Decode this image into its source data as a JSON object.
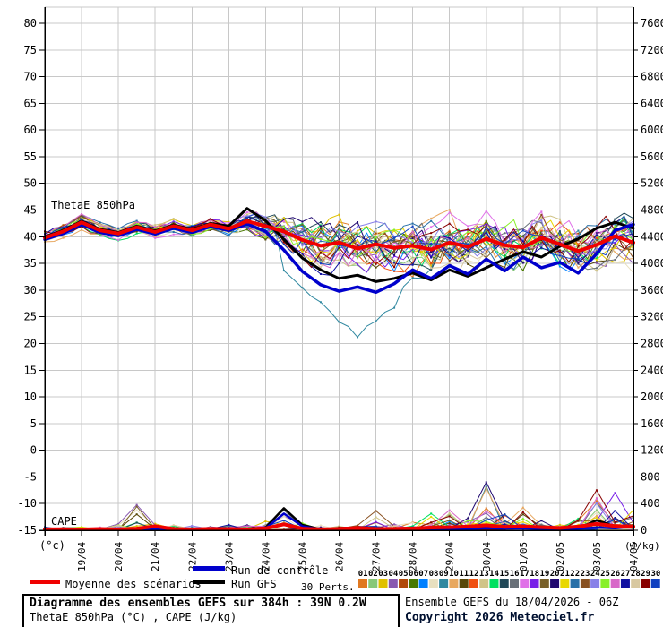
{
  "chart": {
    "thetae_label": "ThetaE 850hPa",
    "cape_label": "CAPE",
    "left_axis_unit": "(°c)",
    "right_axis_unit": "(J/kg)"
  },
  "chart_data": {
    "type": "line",
    "title": "Diagramme des ensembles GEFS sur 384h : 39N 0.2W",
    "subtitle": "ThetaE 850hPa (°C) , CAPE (J/kg)",
    "x_step_hours": 12,
    "x_total_days": 16,
    "x_dates": [
      "19/04",
      "20/04",
      "21/04",
      "22/04",
      "23/04",
      "24/04",
      "25/04",
      "26/04",
      "27/04",
      "28/04",
      "29/04",
      "30/04",
      "01/05",
      "02/05",
      "03/05",
      "04/05"
    ],
    "left_axis": {
      "min": -15,
      "max": 80,
      "step": 5,
      "label": "(°c)"
    },
    "right_axis": {
      "min": 0,
      "max": 7600,
      "step": 400,
      "label": "(J/kg)"
    },
    "grid": true,
    "series": [
      {
        "name": "Moyenne des scénarios",
        "color": "#f00000",
        "values": [
          39.8,
          41.0,
          42.7,
          41.2,
          40.6,
          41.8,
          40.9,
          42.0,
          41.2,
          42.3,
          41.5,
          42.9,
          42.0,
          41.0,
          39.4,
          38.3,
          38.9,
          37.8,
          38.6,
          37.9,
          38.3,
          37.6,
          38.9,
          38.1,
          39.6,
          38.4,
          38.0,
          39.8,
          38.6,
          37.3,
          38.5,
          40.1,
          38.9
        ]
      },
      {
        "name": "Run de contrôle",
        "color": "#0000cc",
        "values": [
          39.5,
          40.6,
          42.3,
          40.8,
          40.2,
          41.4,
          40.5,
          41.6,
          40.8,
          41.9,
          41.2,
          42.4,
          41.0,
          37.5,
          33.5,
          31.0,
          29.8,
          30.6,
          29.6,
          31.2,
          33.8,
          32.2,
          34.6,
          33.0,
          35.8,
          33.6,
          36.2,
          34.2,
          35.2,
          33.2,
          36.8,
          41.2,
          42.3
        ]
      },
      {
        "name": "Run GFS",
        "color": "#000000",
        "values": [
          40.0,
          41.2,
          42.9,
          41.4,
          40.8,
          42.0,
          41.1,
          42.2,
          41.4,
          42.5,
          42.0,
          45.3,
          43.0,
          39.5,
          36.0,
          33.8,
          32.2,
          32.8,
          31.6,
          32.2,
          33.2,
          31.9,
          33.8,
          32.6,
          34.2,
          35.8,
          37.2,
          36.2,
          38.2,
          39.6,
          41.6,
          42.7,
          41.6
        ]
      }
    ],
    "ensemble_envelope": {
      "min": [
        38.3,
        39.2,
        40.8,
        39.4,
        38.8,
        39.8,
        38.9,
        40.0,
        39.2,
        40.2,
        38.8,
        39.5,
        37.5,
        33.0,
        29.5,
        27.0,
        23.5,
        20.5,
        24.0,
        26.0,
        27.0,
        27.0,
        27.8,
        27.3,
        28.0,
        27.0,
        27.8,
        27.2,
        28.0,
        27.4,
        28.0,
        29.0,
        28.4
      ],
      "max": [
        41.6,
        42.8,
        44.6,
        43.0,
        42.4,
        43.6,
        42.8,
        43.9,
        43.2,
        44.3,
        45.8,
        47.6,
        46.4,
        45.2,
        45.0,
        44.2,
        45.6,
        44.1,
        45.2,
        46.1,
        46.6,
        45.2,
        47.1,
        46.2,
        47.6,
        46.2,
        48.1,
        46.6,
        50.1,
        48.2,
        51.6,
        50.2,
        47.2
      ]
    },
    "cape": {
      "mean": [
        15,
        18,
        14,
        20,
        15,
        25,
        60,
        20,
        15,
        22,
        20,
        15,
        30,
        90,
        25,
        15,
        20,
        35,
        20,
        22,
        28,
        40,
        45,
        55,
        75,
        50,
        60,
        45,
        35,
        55,
        95,
        65,
        55
      ],
      "control": [
        8,
        10,
        8,
        12,
        10,
        15,
        25,
        12,
        8,
        10,
        12,
        10,
        30,
        250,
        60,
        12,
        10,
        15,
        12,
        10,
        15,
        20,
        25,
        20,
        30,
        25,
        30,
        20,
        15,
        25,
        40,
        30,
        60
      ],
      "gfs": [
        10,
        12,
        10,
        15,
        12,
        20,
        30,
        15,
        10,
        12,
        15,
        12,
        40,
        330,
        80,
        15,
        12,
        20,
        15,
        12,
        20,
        25,
        30,
        25,
        40,
        30,
        35,
        25,
        20,
        30,
        150,
        60,
        40
      ],
      "envelope_max": [
        40,
        50,
        45,
        60,
        80,
        390,
        120,
        90,
        60,
        60,
        100,
        80,
        200,
        340,
        130,
        80,
        100,
        100,
        300,
        90,
        150,
        260,
        310,
        220,
        740,
        280,
        360,
        160,
        120,
        220,
        620,
        320,
        560
      ],
      "spikes": [
        {
          "member": 19,
          "t": 24,
          "value": 720
        },
        {
          "member": 28,
          "t": 30,
          "value": 600
        },
        {
          "member": 3,
          "t": 5,
          "value": 380
        },
        {
          "member": 0,
          "t": 30,
          "value": 440
        },
        {
          "member": 17,
          "t": 31,
          "value": 560
        },
        {
          "member": 15,
          "t": 13,
          "value": 300
        },
        {
          "member": 22,
          "t": 18,
          "value": 290
        },
        {
          "member": 25,
          "t": 22,
          "value": 300
        },
        {
          "member": 9,
          "t": 26,
          "value": 340
        },
        {
          "member": 13,
          "t": 21,
          "value": 250
        },
        {
          "member": 7,
          "t": 5,
          "value": 300
        }
      ]
    },
    "members": {
      "count": 30,
      "colors": [
        "#e07820",
        "#88c878",
        "#e0c000",
        "#8858b0",
        "#b04808",
        "#487800",
        "#0080ff",
        "#e8e0c0",
        "#3088a0",
        "#e8a860",
        "#584808",
        "#f05010",
        "#d0c488",
        "#00e060",
        "#204858",
        "#687078",
        "#e070e8",
        "#7820e8",
        "#786028",
        "#200870",
        "#e8d800",
        "#2870a8",
        "#885020",
        "#8880e8",
        "#88f028",
        "#d868c8",
        "#1010a0",
        "#d8c8a0",
        "#880000",
        "#1040c0"
      ]
    },
    "legend_position": "bottom"
  },
  "legend": {
    "mean_label": "Moyenne des scénarios",
    "control_label": "Run de contrôle",
    "gfs_label": "Run GFS",
    "perts_label": "30 Perts.",
    "pert_numbers": [
      "01",
      "02",
      "03",
      "04",
      "05",
      "06",
      "07",
      "08",
      "09",
      "10",
      "11",
      "12",
      "13",
      "14",
      "15",
      "16",
      "17",
      "18",
      "19",
      "20",
      "21",
      "22",
      "23",
      "24",
      "25",
      "26",
      "27",
      "28",
      "29",
      "30"
    ]
  },
  "footer": {
    "box_title": "Diagramme des ensembles GEFS sur 384h : 39N 0.2W",
    "box_subtitle": "ThetaE 850hPa (°C) , CAPE (J/kg)",
    "run_info": "Ensemble GEFS du 18/04/2026 - 06Z",
    "copyright": "Copyright 2026 Meteociel.fr"
  },
  "colors": {
    "grid": "#c8c8c8",
    "axis": "#000000",
    "mean": "#f00000",
    "control": "#0000cc",
    "gfs": "#000000",
    "copyright": "#001030"
  }
}
